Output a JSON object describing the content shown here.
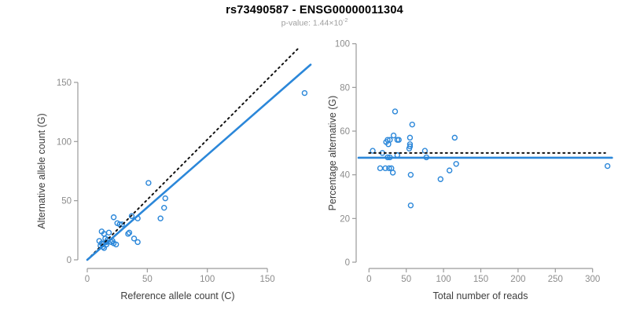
{
  "header": {
    "title": "rs73490587 - ENSG00000011304",
    "pvalue_prefix": "p-value:",
    "pvalue_mantissa": "1.44×10",
    "pvalue_exponent": "-2"
  },
  "colors": {
    "point_blue": "#2b87d9",
    "fit_line_blue": "#2b87d9",
    "identity_line_black": "#111111",
    "axis_gray": "#9a9a9a",
    "tick_text_gray": "#8c8c8c",
    "axis_title_gray": "#3d3d3d",
    "title_black": "#000000",
    "subtitle_gray": "#9e9e9e"
  },
  "chart_data": [
    {
      "type": "scatter",
      "panel": "left",
      "xlabel": "Reference allele count (C)",
      "ylabel": "Alternative allele count (G)",
      "xlim": [
        0,
        186
      ],
      "ylim": [
        0,
        180
      ],
      "xticks": [
        0,
        50,
        100,
        150
      ],
      "yticks": [
        0,
        50,
        100,
        150
      ],
      "grid": false,
      "points": [
        [
          10,
          16
        ],
        [
          11,
          12
        ],
        [
          12,
          14
        ],
        [
          12,
          24
        ],
        [
          13,
          13
        ],
        [
          13,
          11
        ],
        [
          14,
          10
        ],
        [
          14,
          22
        ],
        [
          15,
          18
        ],
        [
          16,
          13
        ],
        [
          16,
          15
        ],
        [
          17,
          17
        ],
        [
          18,
          23
        ],
        [
          20,
          15
        ],
        [
          21,
          16
        ],
        [
          22,
          14
        ],
        [
          24,
          13
        ],
        [
          22,
          36
        ],
        [
          25,
          31
        ],
        [
          27,
          30
        ],
        [
          29,
          30
        ],
        [
          34,
          22
        ],
        [
          35,
          23
        ],
        [
          37,
          37
        ],
        [
          39,
          18
        ],
        [
          42,
          15
        ],
        [
          42,
          35
        ],
        [
          51,
          65
        ],
        [
          61,
          35
        ],
        [
          64,
          44
        ],
        [
          65,
          52
        ],
        [
          181,
          141
        ]
      ],
      "lines": [
        {
          "label": "identity-dotted",
          "style": "dotted",
          "color": "#111111",
          "x1": 0,
          "y1": 0,
          "x2": 176,
          "y2": 179
        },
        {
          "label": "regression-fit",
          "style": "solid",
          "color": "#2b87d9",
          "x1": 0,
          "y1": 0,
          "x2": 186,
          "y2": 165
        }
      ]
    },
    {
      "type": "scatter",
      "panel": "right",
      "xlabel": "Total number of reads",
      "ylabel": "Percentage alternative (G)",
      "xlim": [
        0,
        330
      ],
      "ylim": [
        0,
        100
      ],
      "xticks": [
        0,
        50,
        100,
        150,
        200,
        250,
        300
      ],
      "yticks": [
        0,
        20,
        40,
        60,
        80,
        100
      ],
      "grid": false,
      "points": [
        [
          5,
          51
        ],
        [
          15,
          43
        ],
        [
          18,
          50
        ],
        [
          22,
          43
        ],
        [
          23,
          55
        ],
        [
          25,
          48
        ],
        [
          25,
          56
        ],
        [
          26,
          54
        ],
        [
          27,
          43
        ],
        [
          28,
          48
        ],
        [
          28,
          56
        ],
        [
          30,
          43
        ],
        [
          32,
          41
        ],
        [
          33,
          58
        ],
        [
          35,
          69
        ],
        [
          38,
          49
        ],
        [
          38,
          56
        ],
        [
          40,
          56
        ],
        [
          54,
          52
        ],
        [
          55,
          54
        ],
        [
          55,
          53
        ],
        [
          55,
          57
        ],
        [
          56,
          40
        ],
        [
          56,
          26
        ],
        [
          58,
          63
        ],
        [
          75,
          51
        ],
        [
          77,
          48
        ],
        [
          96,
          38
        ],
        [
          108,
          42
        ],
        [
          115,
          57
        ],
        [
          117,
          45
        ],
        [
          320,
          44
        ]
      ],
      "lines": [
        {
          "label": "expected-50pct-dotted",
          "style": "dotted",
          "color": "#111111",
          "x1": 0,
          "y1": 50,
          "x2": 317,
          "y2": 50
        },
        {
          "label": "mean-percentage",
          "style": "solid",
          "color": "#2b87d9",
          "x1": -14,
          "y1": 47.8,
          "x2": 326,
          "y2": 47.8
        }
      ]
    }
  ]
}
